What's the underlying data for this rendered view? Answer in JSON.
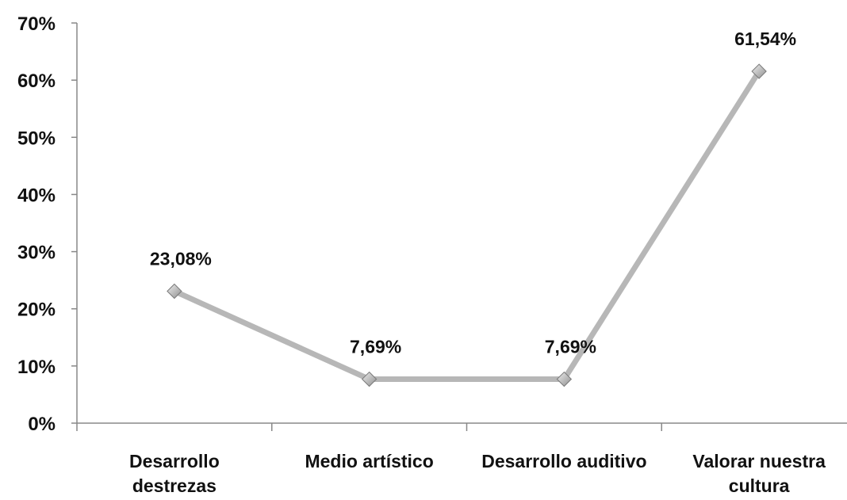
{
  "chart_data": {
    "type": "line",
    "categories": [
      [
        "Desarrollo",
        "destrezas"
      ],
      [
        "Medio artístico"
      ],
      [
        "Desarrollo auditivo"
      ],
      [
        "Valorar nuestra",
        "cultura"
      ]
    ],
    "series": [
      {
        "values": [
          23.08,
          7.69,
          7.69,
          61.54
        ]
      }
    ],
    "data_labels": [
      "23,08%",
      "7,69%",
      "7,69%",
      "61,54%"
    ],
    "yticks": [
      0,
      10,
      20,
      30,
      40,
      50,
      60,
      70
    ],
    "ytick_labels": [
      "0%",
      "10%",
      "20%",
      "30%",
      "40%",
      "50%",
      "60%",
      "70%"
    ],
    "ylim": [
      0,
      70
    ],
    "grid": false,
    "legend": "none",
    "marker": "diamond",
    "colors": {
      "line": "#b7b7b7",
      "marker": "#a9a9a9",
      "axis": "#888888",
      "text": "#111111"
    }
  }
}
